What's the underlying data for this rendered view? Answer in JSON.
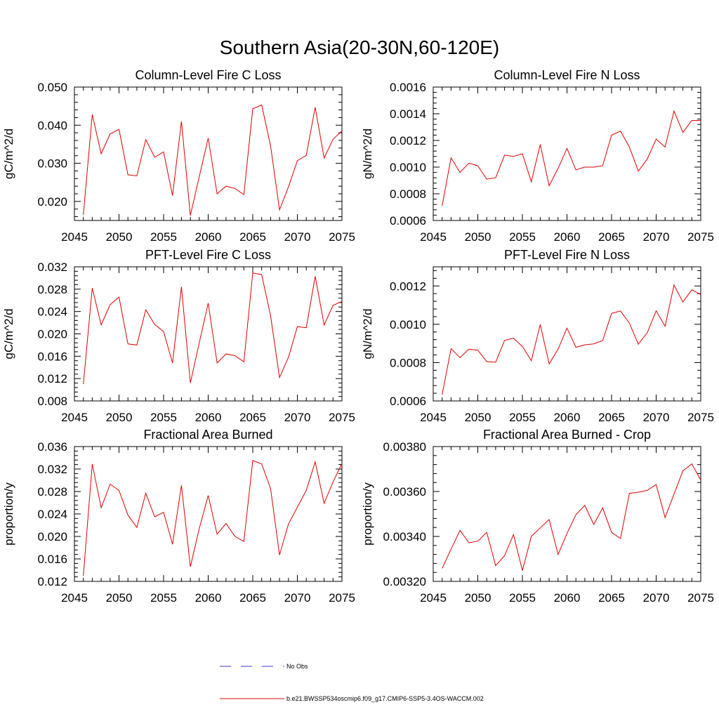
{
  "figure_title": "Southern Asia(20-30N,60-120E)",
  "legend": {
    "entries": [
      {
        "label": "No Obs",
        "color": "#3b3bd6",
        "style": "dashed"
      },
      {
        "label": "b.e21.BWSSP534oscmip6.f09_g17.CMIP6-SSP5-3.4OS-WACCM.002",
        "color": "#e00000",
        "style": "solid"
      }
    ]
  },
  "series_color": "#e00000",
  "chart_data": [
    {
      "type": "line",
      "title": "Column-Level Fire C Loss",
      "ylabel": "gC/m^2/d",
      "xlim": [
        2045,
        2075
      ],
      "xticks": [
        2045,
        2050,
        2055,
        2060,
        2065,
        2070,
        2075
      ],
      "ylim": [
        0.015,
        0.05
      ],
      "yticks": [
        0.02,
        0.03,
        0.04,
        0.05
      ],
      "ydecimals": 3,
      "x": [
        2046,
        2047,
        2048,
        2049,
        2050,
        2051,
        2052,
        2053,
        2054,
        2055,
        2056,
        2057,
        2058,
        2059,
        2060,
        2061,
        2062,
        2063,
        2064,
        2065,
        2066,
        2067,
        2068,
        2069,
        2070,
        2071,
        2072,
        2073,
        2074,
        2075
      ],
      "values": [
        0.0165,
        0.0428,
        0.0325,
        0.0377,
        0.0389,
        0.027,
        0.0267,
        0.0362,
        0.0316,
        0.033,
        0.0215,
        0.041,
        0.0163,
        0.0265,
        0.0366,
        0.022,
        0.024,
        0.0234,
        0.0218,
        0.0443,
        0.0453,
        0.0345,
        0.0178,
        0.0238,
        0.0307,
        0.0321,
        0.0447,
        0.0314,
        0.0363,
        0.0385
      ]
    },
    {
      "type": "line",
      "title": "Column-Level Fire N Loss",
      "ylabel": "gN/m^2/d",
      "xlim": [
        2045,
        2075
      ],
      "xticks": [
        2045,
        2050,
        2055,
        2060,
        2065,
        2070,
        2075
      ],
      "ylim": [
        0.0006,
        0.0016
      ],
      "yticks": [
        0.0006,
        0.0008,
        0.001,
        0.0012,
        0.0014,
        0.0016
      ],
      "ydecimals": 4,
      "x": [
        2046,
        2047,
        2048,
        2049,
        2050,
        2051,
        2052,
        2053,
        2054,
        2055,
        2056,
        2057,
        2058,
        2059,
        2060,
        2061,
        2062,
        2063,
        2064,
        2065,
        2066,
        2067,
        2068,
        2069,
        2070,
        2071,
        2072,
        2073,
        2074,
        2075
      ],
      "values": [
        0.00071,
        0.00107,
        0.00096,
        0.00103,
        0.00101,
        0.00091,
        0.00092,
        0.00109,
        0.00108,
        0.0011,
        0.00089,
        0.00117,
        0.00086,
        0.00099,
        0.00114,
        0.00098,
        0.001,
        0.001,
        0.00101,
        0.00124,
        0.00127,
        0.00115,
        0.00097,
        0.00106,
        0.00121,
        0.00115,
        0.00142,
        0.00126,
        0.00135,
        0.00135
      ]
    },
    {
      "type": "line",
      "title": "PFT-Level Fire C Loss",
      "ylabel": "gC/m^2/d",
      "xlim": [
        2045,
        2075
      ],
      "xticks": [
        2045,
        2050,
        2055,
        2060,
        2065,
        2070,
        2075
      ],
      "ylim": [
        0.008,
        0.032
      ],
      "yticks": [
        0.008,
        0.012,
        0.016,
        0.02,
        0.024,
        0.028,
        0.032
      ],
      "ydecimals": 3,
      "x": [
        2046,
        2047,
        2048,
        2049,
        2050,
        2051,
        2052,
        2053,
        2054,
        2055,
        2056,
        2057,
        2058,
        2059,
        2060,
        2061,
        2062,
        2063,
        2064,
        2065,
        2066,
        2067,
        2068,
        2069,
        2070,
        2071,
        2072,
        2073,
        2074,
        2075
      ],
      "values": [
        0.011,
        0.0282,
        0.0216,
        0.0252,
        0.0266,
        0.0182,
        0.018,
        0.0243,
        0.0217,
        0.0204,
        0.0148,
        0.0284,
        0.0112,
        0.0184,
        0.0255,
        0.0148,
        0.0164,
        0.0161,
        0.015,
        0.0309,
        0.0306,
        0.0232,
        0.0122,
        0.0158,
        0.0213,
        0.0211,
        0.0303,
        0.0216,
        0.0251,
        0.0258
      ]
    },
    {
      "type": "line",
      "title": "PFT-Level Fire N Loss",
      "ylabel": "gN/m^2/d",
      "xlim": [
        2045,
        2075
      ],
      "xticks": [
        2045,
        2050,
        2055,
        2060,
        2065,
        2070,
        2075
      ],
      "ylim": [
        0.0006,
        0.0013
      ],
      "yticks": [
        0.0006,
        0.0008,
        0.001,
        0.0012
      ],
      "ydecimals": 4,
      "x": [
        2046,
        2047,
        2048,
        2049,
        2050,
        2051,
        2052,
        2053,
        2054,
        2055,
        2056,
        2057,
        2058,
        2059,
        2060,
        2061,
        2062,
        2063,
        2064,
        2065,
        2066,
        2067,
        2068,
        2069,
        2070,
        2071,
        2072,
        2073,
        2074,
        2075
      ],
      "values": [
        0.000633,
        0.000873,
        0.000826,
        0.00087,
        0.000865,
        0.000805,
        0.000802,
        0.000916,
        0.000927,
        0.000884,
        0.00081,
        0.000999,
        0.000793,
        0.00087,
        0.00098,
        0.00088,
        0.000893,
        0.000898,
        0.000915,
        0.001057,
        0.001069,
        0.001006,
        0.000896,
        0.000956,
        0.00107,
        0.00099,
        0.001205,
        0.001116,
        0.00118,
        0.001155
      ]
    },
    {
      "type": "line",
      "title": "Fractional Area Burned",
      "ylabel": "proportion/y",
      "xlim": [
        2045,
        2075
      ],
      "xticks": [
        2045,
        2050,
        2055,
        2060,
        2065,
        2070,
        2075
      ],
      "ylim": [
        0.012,
        0.036
      ],
      "yticks": [
        0.012,
        0.016,
        0.02,
        0.024,
        0.028,
        0.032,
        0.036
      ],
      "ydecimals": 3,
      "x": [
        2046,
        2047,
        2048,
        2049,
        2050,
        2051,
        2052,
        2053,
        2054,
        2055,
        2056,
        2057,
        2058,
        2059,
        2060,
        2061,
        2062,
        2063,
        2064,
        2065,
        2066,
        2067,
        2068,
        2069,
        2070,
        2071,
        2072,
        2073,
        2074,
        2075
      ],
      "values": [
        0.013,
        0.0329,
        0.0251,
        0.0293,
        0.0282,
        0.0238,
        0.0216,
        0.0277,
        0.0235,
        0.0243,
        0.0186,
        0.0291,
        0.0146,
        0.0214,
        0.0273,
        0.0204,
        0.0223,
        0.02,
        0.0191,
        0.0335,
        0.0329,
        0.0285,
        0.0167,
        0.0222,
        0.0252,
        0.0282,
        0.0333,
        0.0259,
        0.0297,
        0.033
      ]
    },
    {
      "type": "line",
      "title": "Fractional Area Burned - Crop",
      "ylabel": "proportion/y",
      "xlim": [
        2045,
        2075
      ],
      "xticks": [
        2045,
        2050,
        2055,
        2060,
        2065,
        2070,
        2075
      ],
      "ylim": [
        0.0032,
        0.0038
      ],
      "yticks": [
        0.0032,
        0.0034,
        0.0036,
        0.0038
      ],
      "ydecimals": 5,
      "x": [
        2046,
        2047,
        2048,
        2049,
        2050,
        2051,
        2052,
        2053,
        2054,
        2055,
        2056,
        2057,
        2058,
        2059,
        2060,
        2061,
        2062,
        2063,
        2064,
        2065,
        2066,
        2067,
        2068,
        2069,
        2070,
        2071,
        2072,
        2073,
        2074,
        2075
      ],
      "values": [
        0.003258,
        0.003343,
        0.003427,
        0.003372,
        0.003379,
        0.003418,
        0.00327,
        0.003314,
        0.003408,
        0.003248,
        0.0034,
        0.003438,
        0.003475,
        0.00332,
        0.003413,
        0.003497,
        0.003538,
        0.003453,
        0.003527,
        0.003418,
        0.003391,
        0.003592,
        0.003597,
        0.003605,
        0.003631,
        0.003484,
        0.003588,
        0.003692,
        0.003723,
        0.003651
      ]
    }
  ]
}
